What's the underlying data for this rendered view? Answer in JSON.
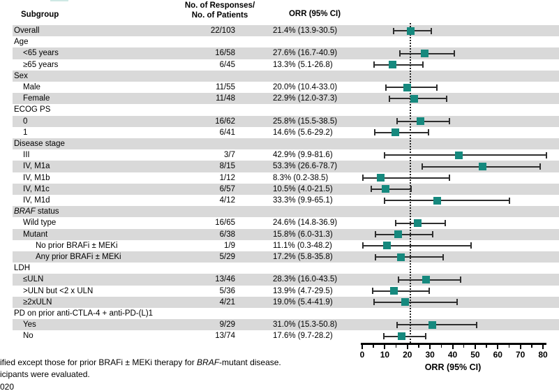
{
  "header": {
    "subgroup": "Subgroup",
    "n_line1": "No. of Responses/",
    "n_line2": "No. of Patients",
    "orr": "ORR (95% CI)"
  },
  "colors": {
    "marker": "#16897E",
    "band": "#D9D9D9",
    "ci": "#2E2E2E",
    "axis": "#000000",
    "artifact": "#CFE8E4"
  },
  "chart_data": {
    "type": "scatter",
    "variant": "forest-plot",
    "title": "",
    "xlabel": "ORR (95% CI)",
    "xlim": [
      0,
      80
    ],
    "ref_line": 21.4,
    "axis": {
      "major_ticks": [
        0,
        10,
        20,
        30,
        40,
        50,
        60,
        70,
        80
      ],
      "minor_ticks": [
        5,
        15,
        25,
        35,
        45,
        55,
        65,
        75
      ]
    },
    "rows": [
      {
        "label": "Overall",
        "indent": 0,
        "n": "22/103",
        "orr": "21.4% (13.9-30.5)",
        "est": 21.4,
        "lo": 13.9,
        "hi": 30.5
      },
      {
        "label": "Age",
        "indent": 0,
        "section": true
      },
      {
        "label": "<65 years",
        "indent": 1,
        "n": "16/58",
        "orr": "27.6% (16.7-40.9)",
        "est": 27.6,
        "lo": 16.7,
        "hi": 40.9
      },
      {
        "label": "≥65 years",
        "indent": 1,
        "n": "6/45",
        "orr": "13.3% (5.1-26.8)",
        "est": 13.3,
        "lo": 5.1,
        "hi": 26.8
      },
      {
        "label": "Sex",
        "indent": 0,
        "section": true
      },
      {
        "label": "Male",
        "indent": 1,
        "n": "11/55",
        "orr": "20.0% (10.4-33.0)",
        "est": 20.0,
        "lo": 10.4,
        "hi": 33.0
      },
      {
        "label": "Female",
        "indent": 1,
        "n": "11/48",
        "orr": "22.9% (12.0-37.3)",
        "est": 22.9,
        "lo": 12.0,
        "hi": 37.3
      },
      {
        "label": "ECOG PS",
        "indent": 0,
        "section": true
      },
      {
        "label": "0",
        "indent": 1,
        "n": "16/62",
        "orr": "25.8% (15.5-38.5)",
        "est": 25.8,
        "lo": 15.5,
        "hi": 38.5
      },
      {
        "label": "1",
        "indent": 1,
        "n": "6/41",
        "orr": "14.6% (5.6-29.2)",
        "est": 14.6,
        "lo": 5.6,
        "hi": 29.2
      },
      {
        "label": "Disease stage",
        "indent": 0,
        "section": true
      },
      {
        "label": "III",
        "indent": 1,
        "n": "3/7",
        "orr": "42.9% (9.9-81.6)",
        "est": 42.9,
        "lo": 9.9,
        "hi": 81.6
      },
      {
        "label": "IV, M1a",
        "indent": 1,
        "n": "8/15",
        "orr": "53.3% (26.6-78.7)",
        "est": 53.3,
        "lo": 26.6,
        "hi": 78.7
      },
      {
        "label": "IV, M1b",
        "indent": 1,
        "n": "1/12",
        "orr": "8.3% (0.2-38.5)",
        "est": 8.3,
        "lo": 0.2,
        "hi": 38.5
      },
      {
        "label": "IV, M1c",
        "indent": 1,
        "n": "6/57",
        "orr": "10.5% (4.0-21.5)",
        "est": 10.5,
        "lo": 4.0,
        "hi": 21.5
      },
      {
        "label": "IV, M1d",
        "indent": 1,
        "n": "4/12",
        "orr": "33.3% (9.9-65.1)",
        "est": 33.3,
        "lo": 9.9,
        "hi": 65.1
      },
      {
        "label": "BRAF status",
        "label_parts": [
          {
            "t": "BRAF",
            "i": true
          },
          {
            "t": " status"
          }
        ],
        "indent": 0,
        "section": true
      },
      {
        "label": "Wild type",
        "indent": 1,
        "n": "16/65",
        "orr": "24.6% (14.8-36.9)",
        "est": 24.6,
        "lo": 14.8,
        "hi": 36.9
      },
      {
        "label": "Mutant",
        "indent": 1,
        "n": "6/38",
        "orr": "15.8% (6.0-31.3)",
        "est": 15.8,
        "lo": 6.0,
        "hi": 31.3
      },
      {
        "label": "No prior BRAFi ± MEKi",
        "indent": 2,
        "n": "1/9",
        "orr": "11.1% (0.3-48.2)",
        "est": 11.1,
        "lo": 0.3,
        "hi": 48.2
      },
      {
        "label": "Any prior BRAFi ± MEKi",
        "indent": 2,
        "n": "5/29",
        "orr": "17.2% (5.8-35.8)",
        "est": 17.2,
        "lo": 5.8,
        "hi": 35.8
      },
      {
        "label": "LDH",
        "indent": 0,
        "section": true
      },
      {
        "label": "≤ULN",
        "indent": 1,
        "n": "13/46",
        "orr": "28.3% (16.0-43.5)",
        "est": 28.3,
        "lo": 16.0,
        "hi": 43.5
      },
      {
        "label": ">ULN but <2 x ULN",
        "indent": 1,
        "n": "5/36",
        "orr": "13.9% (4.7-29.5)",
        "est": 13.9,
        "lo": 4.7,
        "hi": 29.5
      },
      {
        "label": "≥2xULN",
        "indent": 1,
        "n": "4/21",
        "orr": "19.0% (5.4-41.9)",
        "est": 19.0,
        "lo": 5.4,
        "hi": 41.9
      },
      {
        "label": "PD on prior anti-CTLA-4 + anti-PD-(L)1",
        "indent": 0,
        "section": true
      },
      {
        "label": "Yes",
        "indent": 1,
        "n": "9/29",
        "orr": "31.0% (15.3-50.8)",
        "est": 31.0,
        "lo": 15.3,
        "hi": 50.8
      },
      {
        "label": "No",
        "indent": 1,
        "n": "13/74",
        "orr": "17.6% (9.7-28.2)",
        "est": 17.6,
        "lo": 9.7,
        "hi": 28.2
      }
    ]
  },
  "footnotes": [
    [
      {
        "t": "ified except those for prior BRAFi ± MEKi therapy for "
      },
      {
        "t": "BRAF",
        "i": true
      },
      {
        "t": "-mutant disease."
      }
    ],
    [
      {
        "t": "icipants were evaluated."
      }
    ],
    [
      {
        "t": "020"
      }
    ]
  ]
}
